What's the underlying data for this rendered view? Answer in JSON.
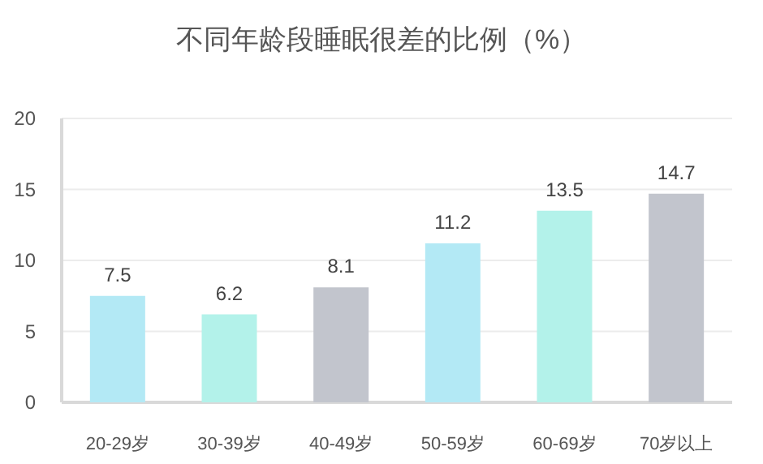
{
  "chart_data": {
    "type": "bar",
    "title": "不同年龄段睡眠很差的比例（%）",
    "categories": [
      "20-29岁",
      "30-39岁",
      "40-49岁",
      "50-59岁",
      "60-69岁",
      "70岁以上"
    ],
    "values": [
      7.5,
      6.2,
      8.1,
      11.2,
      13.5,
      14.7
    ],
    "colors": [
      "#b3e9f5",
      "#b3f2ea",
      "#c2c5cd",
      "#b3e9f5",
      "#b3f2ea",
      "#c2c5cd"
    ],
    "ylim": [
      0,
      20
    ],
    "yticks": [
      0,
      5,
      10,
      15,
      20
    ],
    "grid": "y",
    "data_labels": true
  }
}
